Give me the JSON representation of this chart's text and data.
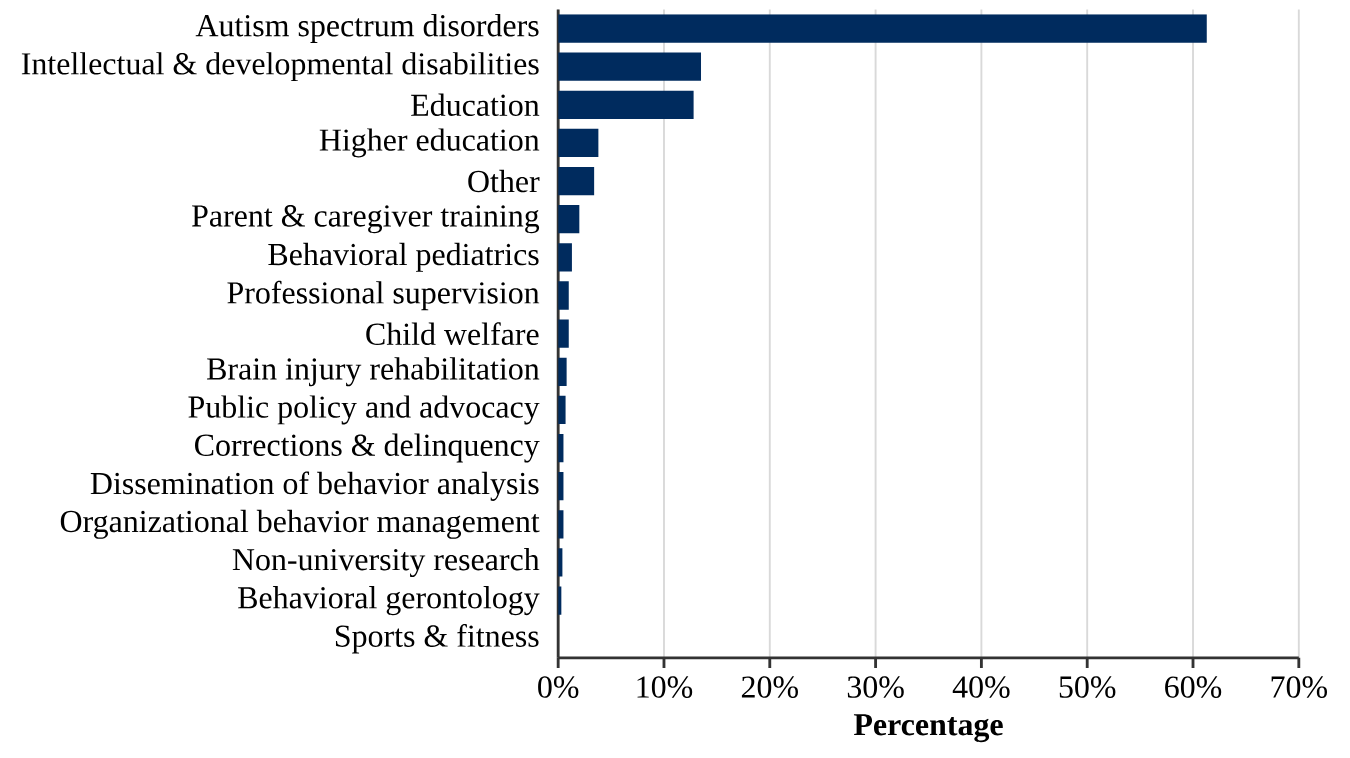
{
  "chart_data": {
    "type": "bar",
    "orientation": "horizontal",
    "xlabel": "Percentage",
    "categories": [
      "Autism spectrum disorders",
      "Intellectual & developmental disabilities",
      "Education",
      "Higher education",
      "Other",
      "Parent & caregiver training",
      "Behavioral pediatrics",
      "Professional supervision",
      "Child welfare",
      "Brain injury rehabilitation",
      "Public policy and advocacy",
      "Corrections & delinquency",
      "Dissemination of behavior analysis",
      "Organizational behavior management",
      "Non-university research",
      "Behavioral gerontology",
      "Sports & fitness"
    ],
    "values": [
      61.3,
      13.5,
      12.8,
      3.8,
      3.4,
      2.0,
      1.3,
      1.0,
      1.0,
      0.8,
      0.7,
      0.5,
      0.5,
      0.5,
      0.4,
      0.3,
      0.0
    ],
    "color": "#002b5e",
    "xlim": [
      0,
      70
    ],
    "xticks": [
      {
        "value": 0,
        "label": "0%"
      },
      {
        "value": 10,
        "label": "10%"
      },
      {
        "value": 20,
        "label": "20%"
      },
      {
        "value": 30,
        "label": "30%"
      },
      {
        "value": 40,
        "label": "40%"
      },
      {
        "value": 50,
        "label": "50%"
      },
      {
        "value": 60,
        "label": "60%"
      },
      {
        "value": 70,
        "label": "70%"
      }
    ],
    "grid": "x"
  }
}
